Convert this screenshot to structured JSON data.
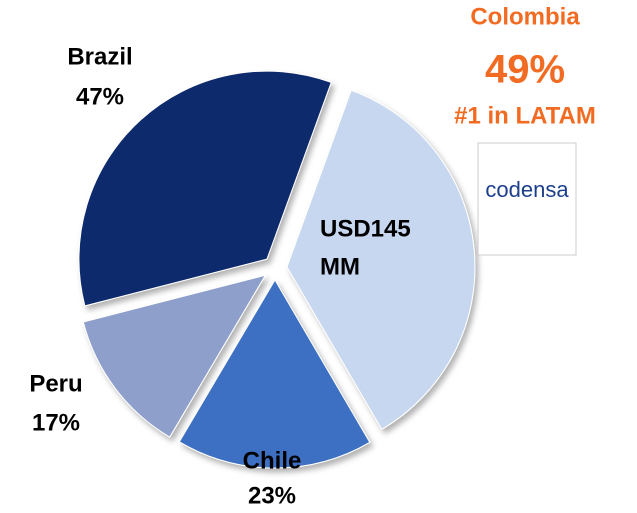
{
  "chart_data": {
    "type": "pie",
    "categories": [
      "Colombia",
      "Chile",
      "Peru",
      "Brazil"
    ],
    "values": [
      49,
      23,
      17,
      47
    ],
    "value_labels": [
      "49%",
      "23%",
      "17%",
      "47%"
    ],
    "colors": [
      "#c6d7ef",
      "#3c70c2",
      "#8d9fca",
      "#102b6c"
    ],
    "annotations": [
      "#1 in LATAM",
      "USD145",
      "MM"
    ],
    "logo_text": "codensa"
  }
}
